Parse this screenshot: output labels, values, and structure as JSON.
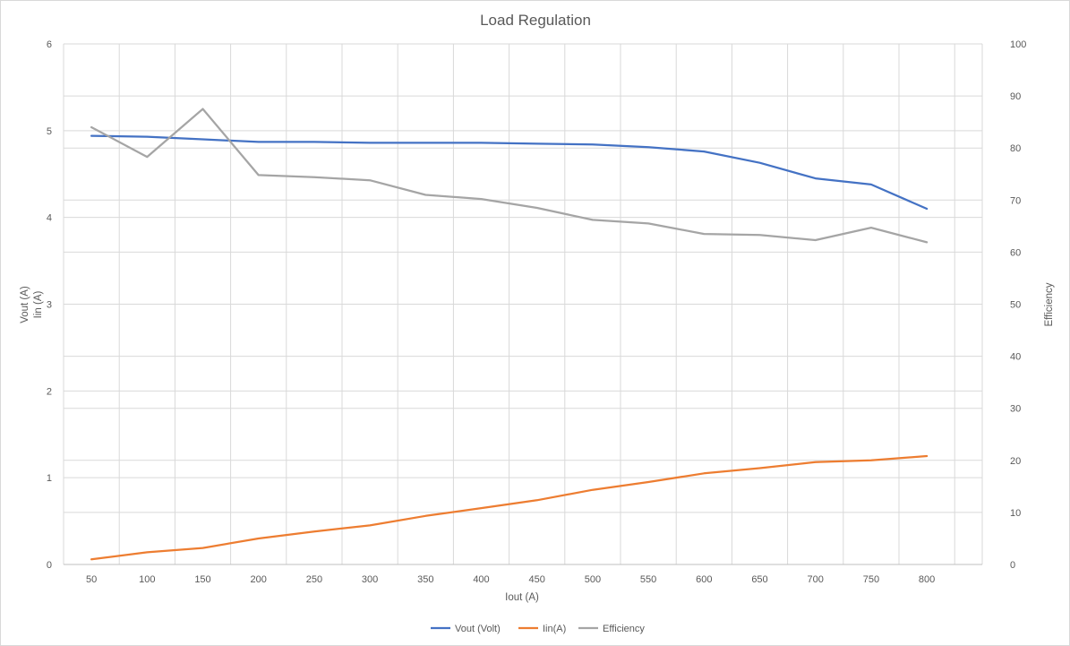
{
  "chart_data": {
    "type": "line",
    "title": "Load Regulation",
    "xlabel": "Iout (A)",
    "ylabel_lines": [
      "Vout (A)",
      "Iin (A)"
    ],
    "y2label": "Efficiency",
    "categories": [
      "50",
      "100",
      "150",
      "200",
      "250",
      "300",
      "350",
      "400",
      "450",
      "500",
      "550",
      "600",
      "650",
      "700",
      "750",
      "800"
    ],
    "ylim": [
      0,
      6
    ],
    "yticks": [
      "0",
      "1",
      "2",
      "3",
      "4",
      "5",
      "6"
    ],
    "y2lim": [
      0,
      100
    ],
    "y2ticks": [
      "0",
      "10",
      "20",
      "30",
      "40",
      "50",
      "60",
      "70",
      "80",
      "90",
      "100"
    ],
    "grid": true,
    "legend_position": "bottom",
    "series": [
      {
        "name": "Vout (Volt)",
        "axis": "left",
        "color": "#4472c4",
        "values": [
          4.94,
          4.93,
          4.9,
          4.87,
          4.87,
          4.86,
          4.86,
          4.86,
          4.85,
          4.84,
          4.81,
          4.76,
          4.63,
          4.45,
          4.38,
          4.1
        ]
      },
      {
        "name": "Iin(A)",
        "axis": "left",
        "color": "#ed7d31",
        "values": [
          0.06,
          0.14,
          0.19,
          0.3,
          0.38,
          0.45,
          0.56,
          0.65,
          0.74,
          0.86,
          0.95,
          1.05,
          1.11,
          1.18,
          1.2,
          1.25
        ]
      },
      {
        "name": "Efficiency",
        "axis": "right",
        "color": "#a5a5a5",
        "values": [
          84.0,
          78.3,
          87.5,
          74.8,
          74.4,
          73.8,
          71.0,
          70.2,
          68.5,
          66.2,
          65.5,
          63.5,
          63.3,
          62.3,
          64.7,
          61.9
        ]
      }
    ]
  }
}
